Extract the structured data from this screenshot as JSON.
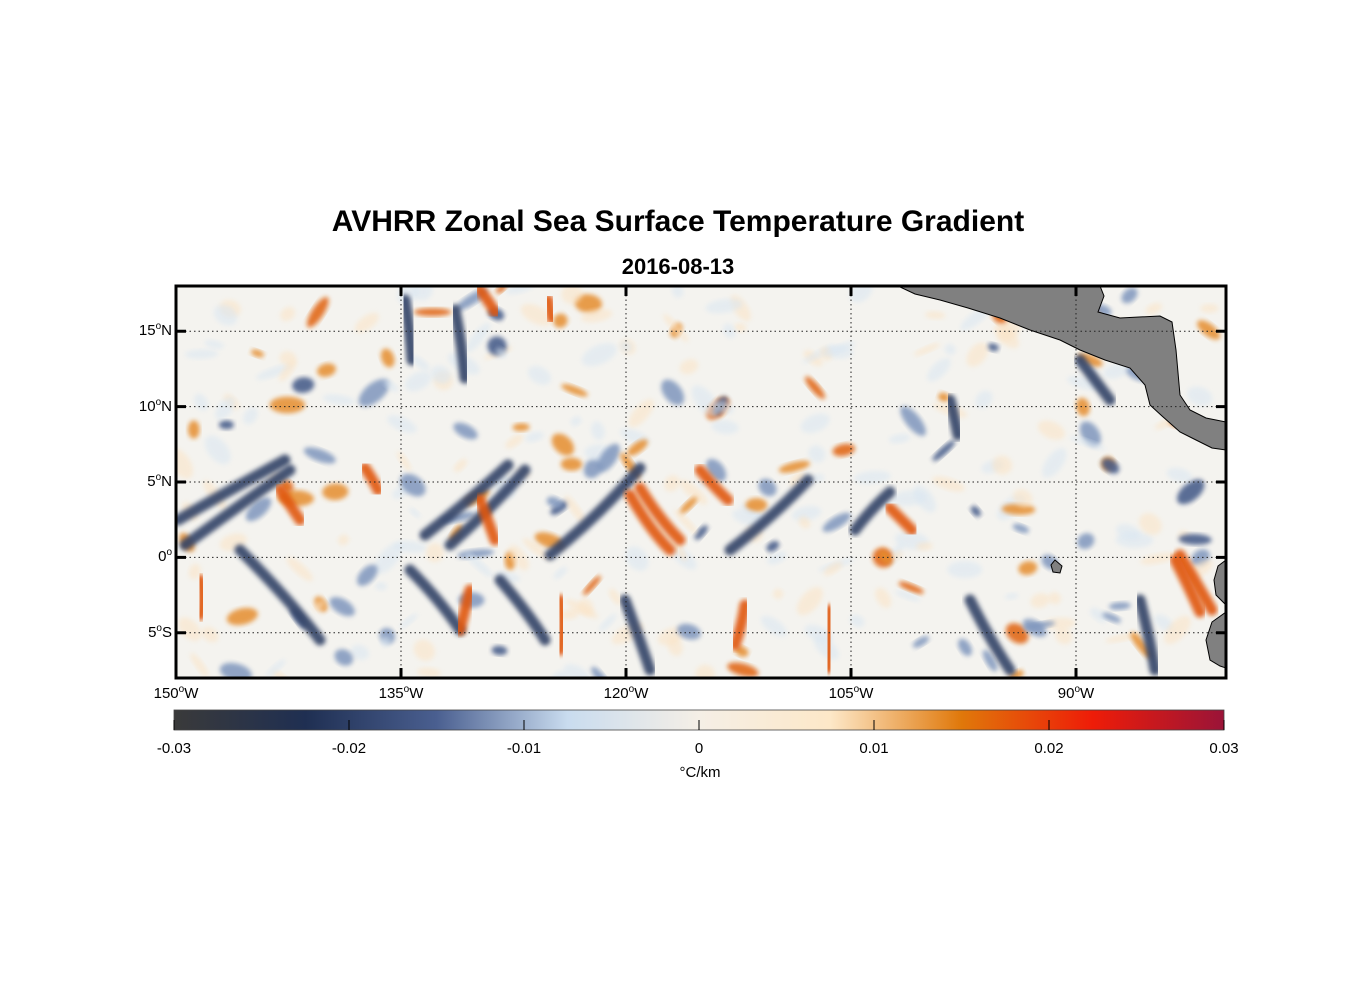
{
  "figure": {
    "title": "AVHRR Zonal Sea Surface Temperature Gradient",
    "date": "2016-08-13"
  },
  "map": {
    "lon_range": [
      -150,
      -80
    ],
    "lat_range": [
      -8,
      18
    ],
    "land_color": "#808080",
    "lat_ticks": [
      {
        "value": 15,
        "num": "15",
        "deg": "o",
        "hemi": "N"
      },
      {
        "value": 10,
        "num": "10",
        "deg": "o",
        "hemi": "N"
      },
      {
        "value": 5,
        "num": "5",
        "deg": "o",
        "hemi": "N"
      },
      {
        "value": 0,
        "num": "0",
        "deg": "o",
        "hemi": ""
      },
      {
        "value": -5,
        "num": "5",
        "deg": "o",
        "hemi": "S"
      }
    ],
    "lon_ticks": [
      {
        "value": -150,
        "num": "150",
        "deg": "o",
        "hemi": "W"
      },
      {
        "value": -135,
        "num": "135",
        "deg": "o",
        "hemi": "W"
      },
      {
        "value": -120,
        "num": "120",
        "deg": "o",
        "hemi": "W"
      },
      {
        "value": -105,
        "num": "105",
        "deg": "o",
        "hemi": "W"
      },
      {
        "value": -90,
        "num": "90",
        "deg": "o",
        "hemi": "W"
      }
    ]
  },
  "colorbar": {
    "range": [
      -0.03,
      0.03
    ],
    "ticks": [
      "-0.03",
      "-0.02",
      "-0.01",
      "0",
      "0.01",
      "0.02",
      "0.03"
    ],
    "unit": "°C/km",
    "colors": [
      "#3a3a3a",
      "#1f2f52",
      "#4a5f90",
      "#c9dcef",
      "#f5efe6",
      "#fde8c8",
      "#e0780a",
      "#ee1c08",
      "#9a1438"
    ]
  },
  "chart_data": {
    "type": "heatmap",
    "title": "AVHRR Zonal Sea Surface Temperature Gradient",
    "subtitle": "2016-08-13",
    "x_range_lon": [
      -150,
      -80
    ],
    "y_range_lat": [
      -8,
      18
    ],
    "value_range": [
      -0.03,
      0.03
    ],
    "units": "°C/km",
    "features": [
      {
        "kind": "band",
        "sign": "negative",
        "lon": [
          -150,
          -143
        ],
        "lat": [
          1,
          6
        ]
      },
      {
        "kind": "band",
        "sign": "negative",
        "lon": [
          -135,
          -129
        ],
        "lat": [
          2,
          6
        ]
      },
      {
        "kind": "band",
        "sign": "negative",
        "lon": [
          -125,
          -119
        ],
        "lat": [
          0,
          6
        ]
      },
      {
        "kind": "band",
        "sign": "negative",
        "lon": [
          -115,
          -109
        ],
        "lat": [
          0,
          5
        ]
      },
      {
        "kind": "band",
        "sign": "negative",
        "lon": [
          -106,
          -104
        ],
        "lat": [
          2,
          5
        ]
      },
      {
        "kind": "band",
        "sign": "positive",
        "lon": [
          -120,
          -117
        ],
        "lat": [
          1,
          5
        ]
      },
      {
        "kind": "band",
        "sign": "positive",
        "lon": [
          -115,
          -113
        ],
        "lat": [
          4,
          6
        ]
      },
      {
        "kind": "band",
        "sign": "positive",
        "lon": [
          -84,
          -82
        ],
        "lat": [
          -3,
          0
        ]
      },
      {
        "kind": "band",
        "sign": "negative",
        "lon": [
          -86,
          -84
        ],
        "lat": [
          -7,
          -3
        ]
      }
    ]
  }
}
